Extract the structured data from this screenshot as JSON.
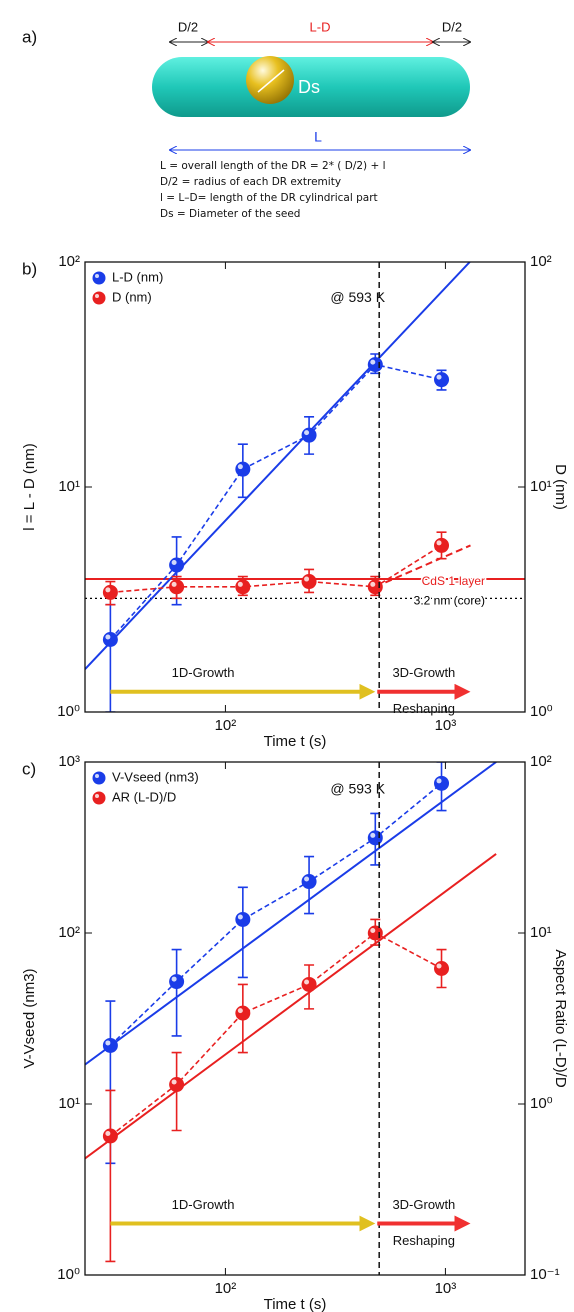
{
  "diagram": {
    "label": "a)",
    "segment_labels": [
      "D/2",
      "L-D",
      "D/2"
    ],
    "seed_label": "Ds",
    "length_label": "L",
    "definitions": [
      "L = overall length of the DR = 2* ( D/2) + l",
      "D/2  = radius of each DR extremity",
      "l = L–D= length of the DR cylindrical part",
      "Ds = Diameter of the seed"
    ]
  },
  "chart_data": [
    {
      "type": "scatter",
      "label": "b)",
      "x_label": "Time t (s)",
      "y_label": "l = L - D (nm)",
      "y2_label": "D (nm)",
      "log_x": true,
      "log_y": true,
      "xlim": [
        23,
        2300
      ],
      "ylim": [
        1,
        100
      ],
      "y2lim": [
        1,
        100
      ],
      "xticks": [
        {
          "value": 100,
          "label": "10²"
        },
        {
          "value": 1000,
          "label": "10³"
        }
      ],
      "yticks": [
        {
          "value": 1,
          "label": "10⁰"
        },
        {
          "value": 10,
          "label": "10¹"
        },
        {
          "value": 100,
          "label": "10²"
        }
      ],
      "y2ticks": [
        {
          "value": 1,
          "label": "10⁰"
        },
        {
          "value": 10,
          "label": "10¹"
        },
        {
          "value": 100,
          "label": "10²"
        }
      ],
      "x": [
        30,
        60,
        120,
        240,
        480,
        960
      ],
      "series": [
        {
          "name": "L-D (nm)",
          "color": "#1a3ce8",
          "values": [
            2.1,
            4.5,
            12,
            17,
            35,
            30
          ],
          "lower": [
            1,
            3,
            9,
            14,
            32,
            27
          ],
          "upper": [
            3,
            6,
            15.5,
            20.5,
            39,
            33
          ]
        },
        {
          "name": "D (nm)",
          "color": "#e82020",
          "axis": "y2",
          "values": [
            3.4,
            3.6,
            3.6,
            3.8,
            3.6,
            5.5
          ],
          "lower": [
            3,
            3.2,
            3.3,
            3.4,
            3.3,
            4.8
          ],
          "upper": [
            3.8,
            4,
            4,
            4.3,
            4,
            6.3
          ]
        }
      ],
      "lines": [
        {
          "color": "#1a3ce8",
          "style": "solid",
          "x": [
            23,
            1290
          ],
          "y": [
            1.55,
            100
          ]
        },
        {
          "color": "#e82020",
          "style": "dashed",
          "axis": "y2",
          "x": [
            480,
            1300
          ],
          "y": [
            3.6,
            5.5
          ]
        }
      ],
      "reference_lines": [
        {
          "y": 3.9,
          "color": "#e82020",
          "style": "solid",
          "label": "CdS 1-layer"
        },
        {
          "y": 3.2,
          "color": "#000000",
          "style": "dotted",
          "label": "3.2 nm (core)"
        }
      ],
      "vline_x": 500,
      "arrows": [
        {
          "label": "1D-Growth",
          "x": [
            30,
            480
          ],
          "y": 1.23,
          "color": "#e0c020"
        },
        {
          "label": "3D-Growth",
          "sublabel": "Reshaping",
          "x": [
            490,
            1300
          ],
          "y": 1.23,
          "color": "#f03030"
        }
      ],
      "annotations": [
        {
          "text": "@ 593 K",
          "x": 300,
          "y": 69
        }
      ]
    },
    {
      "type": "scatter",
      "label": "c)",
      "x_label": "Time t (s)",
      "y_label": "V-Vseed (nm3)",
      "y2_label": "Aspect Ratio (L-D)/D",
      "log_x": true,
      "log_y": true,
      "xlim": [
        23,
        2300
      ],
      "ylim": [
        1,
        1000
      ],
      "y2lim": [
        0.1,
        100
      ],
      "xticks": [
        {
          "value": 100,
          "label": "10²"
        },
        {
          "value": 1000,
          "label": "10³"
        }
      ],
      "yticks": [
        {
          "value": 1,
          "label": "10⁰"
        },
        {
          "value": 10,
          "label": "10¹"
        },
        {
          "value": 100,
          "label": "10²"
        },
        {
          "value": 1000,
          "label": "10³"
        }
      ],
      "y2ticks": [
        {
          "value": 0.1,
          "label": "10⁻¹"
        },
        {
          "value": 1,
          "label": "10⁰"
        },
        {
          "value": 10,
          "label": "10¹"
        },
        {
          "value": 100,
          "label": "10²"
        }
      ],
      "x": [
        30,
        60,
        120,
        240,
        480,
        960
      ],
      "series": [
        {
          "name": "V-Vseed (nm3)",
          "color": "#1a3ce8",
          "values": [
            22,
            52,
            120,
            200,
            360,
            750
          ],
          "lower": [
            4.5,
            25,
            55,
            130,
            250,
            520
          ],
          "upper": [
            40,
            80,
            185,
            280,
            500,
            1000
          ]
        },
        {
          "name": "AR (L-D)/D",
          "color": "#e82020",
          "axis": "y2",
          "values": [
            0.65,
            1.3,
            3.4,
            5,
            10,
            6.2
          ],
          "lower": [
            0.12,
            0.7,
            2,
            3.6,
            8.5,
            4.8
          ],
          "upper": [
            1.2,
            2,
            5,
            6.5,
            12,
            8
          ]
        }
      ],
      "lines": [
        {
          "color": "#1a3ce8",
          "style": "solid",
          "x": [
            23,
            1700
          ],
          "y": [
            17,
            1000
          ]
        },
        {
          "color": "#e82020",
          "style": "solid",
          "axis": "y2",
          "x": [
            23,
            1700
          ],
          "y": [
            0.48,
            29
          ]
        }
      ],
      "vline_x": 500,
      "arrows": [
        {
          "label": "1D-Growth",
          "x": [
            30,
            480
          ],
          "y": 2.0,
          "color": "#e0c020"
        },
        {
          "label": "3D-Growth",
          "sublabel": "Reshaping",
          "x": [
            490,
            1300
          ],
          "y": 2.0,
          "color": "#f03030"
        }
      ],
      "annotations": [
        {
          "text": "@ 593 K",
          "x": 300,
          "y": 690
        }
      ]
    }
  ]
}
